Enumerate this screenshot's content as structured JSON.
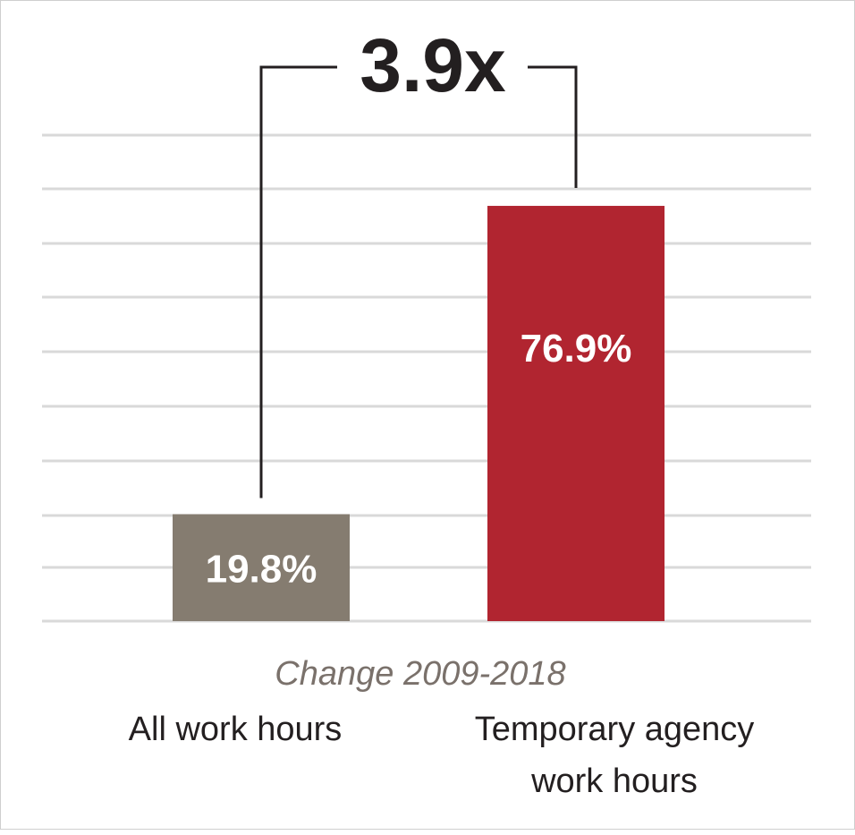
{
  "chart_data": {
    "type": "bar",
    "categories": [
      "All work hours",
      "Temporary agency work hours"
    ],
    "category_lines": [
      [
        "All work hours"
      ],
      [
        "Temporary agency",
        "work hours"
      ]
    ],
    "values": [
      19.8,
      76.9
    ],
    "value_labels": [
      "19.8%",
      "76.9%"
    ],
    "colors": [
      "#857c70",
      "#b12530"
    ],
    "subtitle": "Change 2009-2018",
    "comparison_label": "3.9x",
    "ylim": [
      0,
      90
    ],
    "grid": true,
    "legend": "none"
  }
}
